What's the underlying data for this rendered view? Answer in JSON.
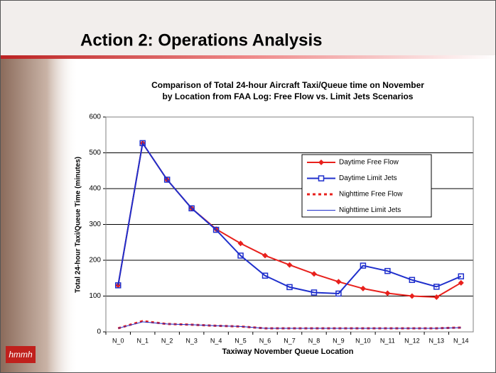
{
  "slide": {
    "title": "Action 2: Operations Analysis",
    "logo": "hmmh"
  },
  "chart_data": {
    "type": "line",
    "title": [
      "Comparison of Total 24-hour Aircraft Taxi/Queue time on November",
      "by Location from FAA Log: Free Flow vs. Limit Jets Scenarios"
    ],
    "x_label": "Taxiway November Queue Location",
    "y_label": "Total 24-hour Taxi/Queue Time (minutes)",
    "categories": [
      "N_0",
      "N_1",
      "N_2",
      "N_3",
      "N_4",
      "N_5",
      "N_6",
      "N_7",
      "N_8",
      "N_9",
      "N_10",
      "N_11",
      "N_12",
      "N_13",
      "N_14"
    ],
    "ylim": [
      0,
      600
    ],
    "yticks": [
      0,
      100,
      200,
      300,
      400,
      500,
      600
    ],
    "grid": true,
    "series": [
      {
        "name": "Daytime Free Flow",
        "color": "#e8201c",
        "line_style": "solid",
        "width": 2,
        "marker": "diamond",
        "values": [
          130,
          527,
          425,
          345,
          287,
          247,
          213,
          187,
          162,
          140,
          121,
          108,
          100,
          97,
          137
        ]
      },
      {
        "name": "Daytime Limit Jets",
        "color": "#1f2fcc",
        "line_style": "solid",
        "width": 2,
        "marker": "square",
        "values": [
          130,
          527,
          425,
          345,
          285,
          213,
          157,
          125,
          110,
          107,
          185,
          170,
          145,
          126,
          155
        ]
      },
      {
        "name": "Nighttime Free Flow",
        "color": "#e8201c",
        "line_style": "dashed",
        "width": 3,
        "marker": "none",
        "values": [
          10,
          30,
          22,
          20,
          17,
          15,
          10,
          10,
          10,
          10,
          10,
          10,
          10,
          10,
          12
        ]
      },
      {
        "name": "Nighttime Limit Jets",
        "color": "#1f2fcc",
        "line_style": "solid",
        "width": 1,
        "marker": "none",
        "values": [
          10,
          28,
          22,
          20,
          17,
          15,
          10,
          10,
          10,
          10,
          10,
          10,
          10,
          10,
          12
        ]
      }
    ]
  }
}
